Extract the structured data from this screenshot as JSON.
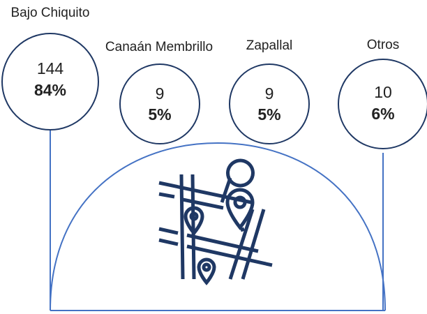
{
  "items": [
    {
      "label": "Bajo Chiquito",
      "count": "144",
      "percent": "84%"
    },
    {
      "label": "Canaán Membrillo",
      "count": "9",
      "percent": "5%"
    },
    {
      "label": "Zapallal",
      "count": "9",
      "percent": "5%"
    },
    {
      "label": "Otros",
      "count": "10",
      "percent": "6%"
    }
  ]
}
